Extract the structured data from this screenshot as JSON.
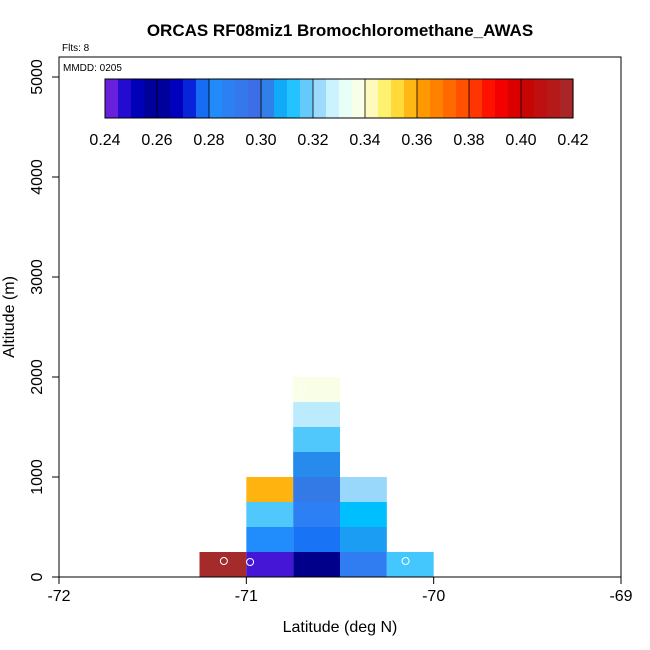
{
  "chart_data": {
    "type": "heatmap",
    "title": "ORCAS RF08miz1 Bromochloromethane_AWAS",
    "flights_text": "Flts: 8",
    "date_text": "MMDD: 0205",
    "xlabel": "Latitude (deg N)",
    "ylabel": "Altitude (m)",
    "xlim": [
      -72,
      -69
    ],
    "ylim": [
      0,
      5200
    ],
    "x_ticks": [
      -72,
      -71,
      -70,
      -69
    ],
    "x_tick_labels": [
      "-72",
      "-71",
      "-70",
      "-69"
    ],
    "y_ticks": [
      0,
      1000,
      2000,
      3000,
      4000,
      5000
    ],
    "y_tick_labels": [
      "0",
      "1000",
      "2000",
      "3000",
      "4000",
      "5000"
    ],
    "bin_width_deg": 0.25,
    "bin_height_m": 250,
    "cells": [
      {
        "lat": -71.125,
        "alt": 125,
        "value": 0.42
      },
      {
        "lat": -70.875,
        "alt": 125,
        "value": 0.245
      },
      {
        "lat": -70.625,
        "alt": 125,
        "value": 0.26
      },
      {
        "lat": -70.375,
        "alt": 125,
        "value": 0.29
      },
      {
        "lat": -70.125,
        "alt": 125,
        "value": 0.315
      },
      {
        "lat": -70.875,
        "alt": 375,
        "value": 0.282
      },
      {
        "lat": -70.625,
        "alt": 375,
        "value": 0.278
      },
      {
        "lat": -70.375,
        "alt": 375,
        "value": 0.306
      },
      {
        "lat": -70.875,
        "alt": 625,
        "value": 0.316
      },
      {
        "lat": -70.625,
        "alt": 625,
        "value": 0.288
      },
      {
        "lat": -70.375,
        "alt": 625,
        "value": 0.31
      },
      {
        "lat": -70.875,
        "alt": 875,
        "value": 0.358
      },
      {
        "lat": -70.625,
        "alt": 875,
        "value": 0.302
      },
      {
        "lat": -70.375,
        "alt": 875,
        "value": 0.322
      },
      {
        "lat": -70.625,
        "alt": 1125,
        "value": 0.304
      },
      {
        "lat": -70.625,
        "alt": 1375,
        "value": 0.316
      },
      {
        "lat": -70.625,
        "alt": 1625,
        "value": 0.326
      },
      {
        "lat": -70.625,
        "alt": 1875,
        "value": 0.338
      }
    ],
    "markers": [
      {
        "lat": -71.12,
        "alt": 160
      },
      {
        "lat": -70.98,
        "alt": 150
      },
      {
        "lat": -70.15,
        "alt": 160
      },
      {
        "lat": -70.7,
        "alt": 1880
      }
    ],
    "colorbar": {
      "min": 0.24,
      "max": 0.42,
      "ticks": [
        0.24,
        0.26,
        0.28,
        0.3,
        0.32,
        0.34,
        0.36,
        0.38,
        0.4,
        0.42
      ],
      "tick_labels": [
        "0.24",
        "0.26",
        "0.28",
        "0.30",
        "0.32",
        "0.34",
        "0.36",
        "0.38",
        "0.40",
        "0.42"
      ],
      "color_stops": [
        {
          "v": 0.24,
          "color": "#8a2be2"
        },
        {
          "v": 0.25,
          "color": "#0000c8"
        },
        {
          "v": 0.26,
          "color": "#00008b"
        },
        {
          "v": 0.27,
          "color": "#0000cd"
        },
        {
          "v": 0.28,
          "color": "#1e90ff"
        },
        {
          "v": 0.3,
          "color": "#4169e1"
        },
        {
          "v": 0.31,
          "color": "#00bfff"
        },
        {
          "v": 0.32,
          "color": "#87cefa"
        },
        {
          "v": 0.33,
          "color": "#e0ffff"
        },
        {
          "v": 0.34,
          "color": "#ffffe0"
        },
        {
          "v": 0.35,
          "color": "#ffec4a"
        },
        {
          "v": 0.36,
          "color": "#ffa500"
        },
        {
          "v": 0.38,
          "color": "#ff4500"
        },
        {
          "v": 0.39,
          "color": "#ff0000"
        },
        {
          "v": 0.4,
          "color": "#cd0000"
        },
        {
          "v": 0.42,
          "color": "#a52a2a"
        }
      ]
    }
  }
}
